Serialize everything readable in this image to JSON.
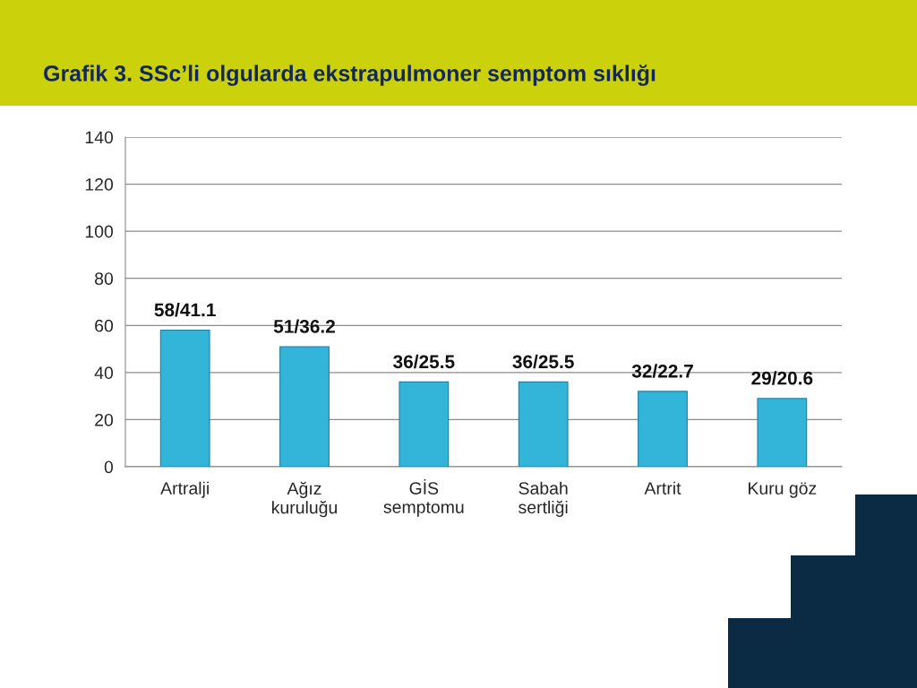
{
  "chart_data": {
    "type": "bar",
    "title": "Grafik 3. SSc’li olgularda ekstrapulmoner semptom sıklığı",
    "categories": [
      "Artralji",
      "Ağız\nkuruluğu",
      "GİS\nsemptomu",
      "Sabah\nsertliği",
      "Artrit",
      "Kuru göz"
    ],
    "values": [
      58,
      51,
      36,
      36,
      32,
      29
    ],
    "value_labels": [
      "58/41.1",
      "51/36.2",
      "36/25.5",
      "36/25.5",
      "32/22.7",
      "29/20.6"
    ],
    "color": "#33b5da",
    "ylim": [
      0,
      140
    ],
    "yticks": [
      0,
      20,
      40,
      60,
      80,
      100,
      120,
      140
    ],
    "grid": "y"
  }
}
